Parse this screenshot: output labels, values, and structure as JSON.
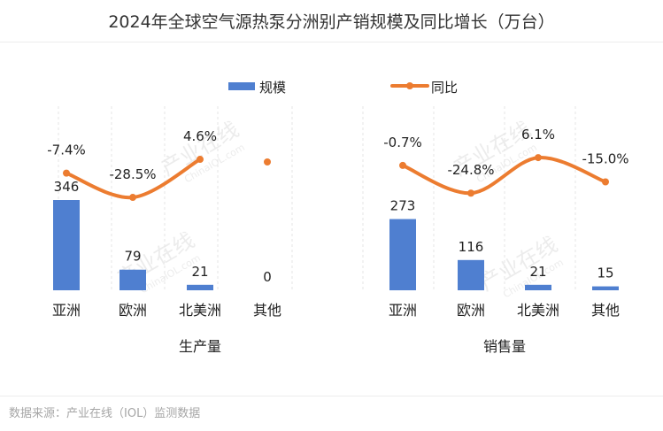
{
  "title": "2024年全球空气源热泵分洲别产销规模及同比增长（万台）",
  "source": "数据来源：产业在线（IOL）监测数据",
  "watermark": [
    "产业在线",
    "ChinaIOL.com"
  ],
  "colors": {
    "bar": "#4f7fd0",
    "line": "#ec7c30",
    "grid": "#e6e6e6"
  },
  "chart_data": {
    "type": "bar",
    "title": "2024年全球空气源热泵分洲别产销规模及同比增长（万台）",
    "legend": [
      {
        "name": "规模",
        "kind": "bar"
      },
      {
        "name": "同比",
        "kind": "line"
      }
    ],
    "panels": [
      {
        "name": "生产量",
        "categories": [
          "亚洲",
          "欧洲",
          "北美洲",
          "其他"
        ],
        "scale": [
          346,
          79,
          21,
          0
        ],
        "scale_labels": [
          "346",
          "79",
          "21",
          "0"
        ],
        "yoy": [
          -7.4,
          -28.5,
          4.6,
          null
        ],
        "yoy_labels": [
          "-7.4%",
          "-28.5%",
          "4.6%",
          ""
        ],
        "isolated_points": [
          3
        ]
      },
      {
        "name": "销售量",
        "categories": [
          "亚洲",
          "欧洲",
          "北美洲",
          "其他"
        ],
        "scale": [
          273,
          116,
          21,
          15
        ],
        "scale_labels": [
          "273",
          "116",
          "21",
          "15"
        ],
        "yoy": [
          -0.7,
          -24.8,
          6.1,
          -15.0
        ],
        "yoy_labels": [
          "-0.7%",
          "-24.8%",
          "6.1%",
          "-15.0%"
        ],
        "isolated_points": []
      }
    ]
  }
}
